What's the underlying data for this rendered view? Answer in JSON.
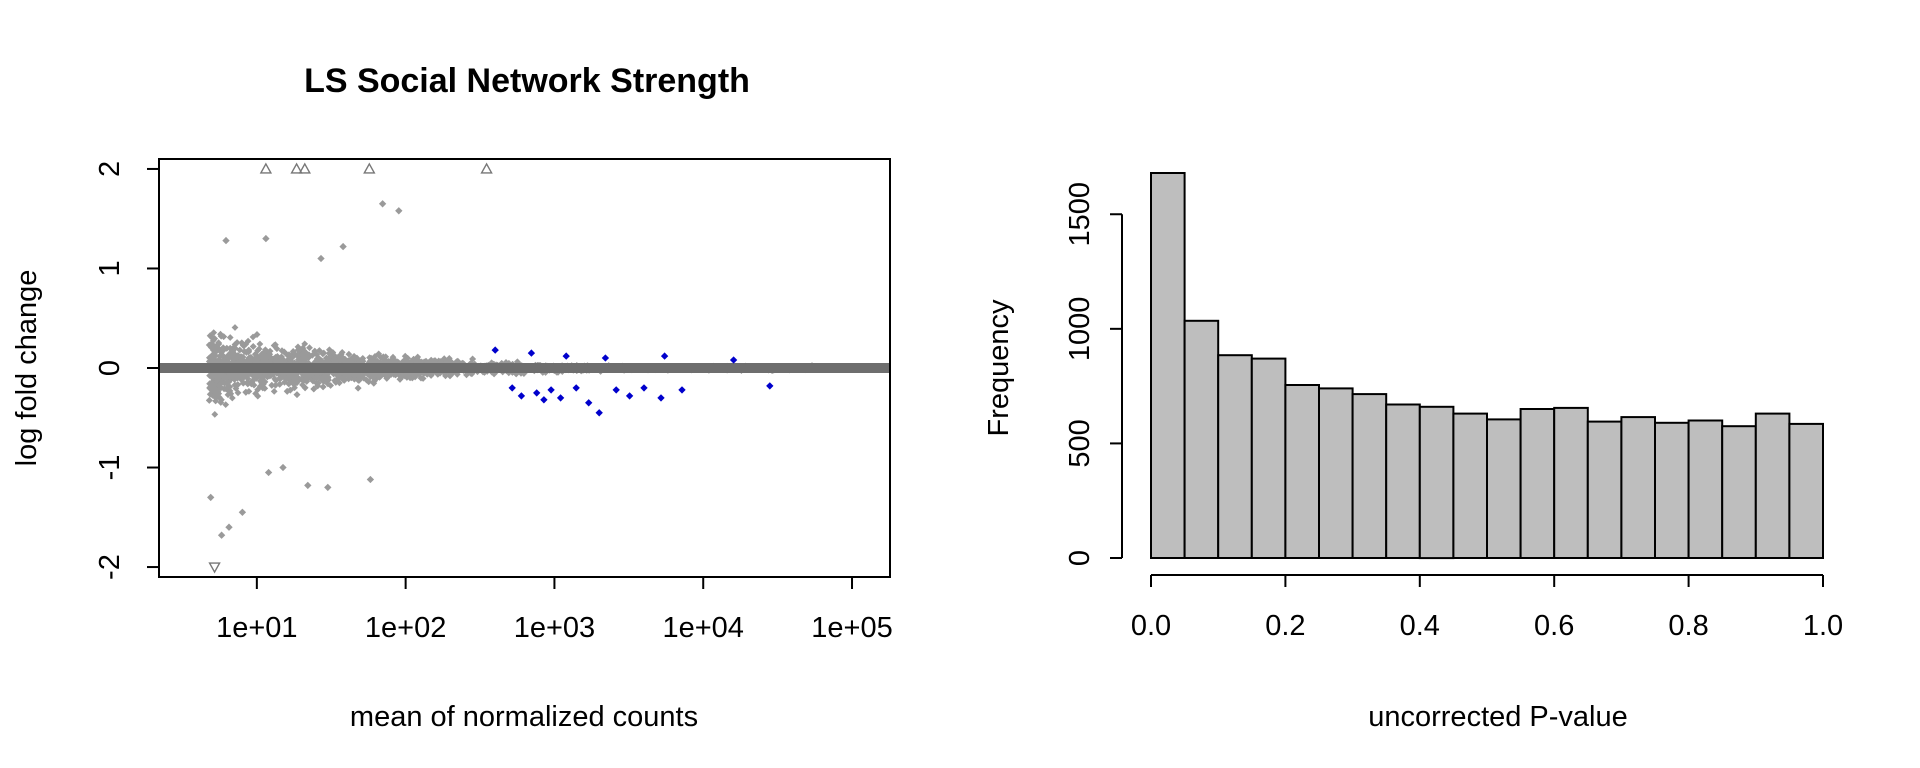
{
  "chart_data": [
    {
      "type": "scatter",
      "title": "LS Social Network Strength",
      "xlabel": "mean of normalized counts",
      "ylabel": "log fold change",
      "x_scale": "log10",
      "xlim": [
        2.2,
        180000
      ],
      "ylim": [
        -2.1,
        2.1
      ],
      "x_tick_values": [
        10,
        100,
        1000,
        10000,
        100000
      ],
      "x_tick_labels": [
        "1e+01",
        "1e+02",
        "1e+03",
        "1e+04",
        "1e+05"
      ],
      "y_tick_values": [
        -2,
        -1,
        0,
        1,
        2
      ],
      "y_tick_labels": [
        "-2",
        "-1",
        "0",
        "1",
        "2"
      ],
      "colors": {
        "not_significant": "#9a9a9a",
        "significant": "#0000cc",
        "zero_line": "#6e6e6e"
      },
      "clipped_up_x": [
        11.5,
        18.5,
        21,
        57,
        350
      ],
      "clipped_down_x": [
        5.2
      ],
      "significant_points": [
        [
          400,
          0.18
        ],
        [
          520,
          -0.2
        ],
        [
          600,
          -0.28
        ],
        [
          700,
          0.15
        ],
        [
          760,
          -0.25
        ],
        [
          850,
          -0.32
        ],
        [
          950,
          -0.22
        ],
        [
          1100,
          -0.3
        ],
        [
          1200,
          0.12
        ],
        [
          1400,
          -0.2
        ],
        [
          1700,
          -0.35
        ],
        [
          2000,
          -0.45
        ],
        [
          2200,
          0.1
        ],
        [
          2600,
          -0.22
        ],
        [
          3200,
          -0.28
        ],
        [
          4000,
          -0.2
        ],
        [
          5200,
          -0.3
        ],
        [
          5500,
          0.12
        ],
        [
          7200,
          -0.22
        ],
        [
          16000,
          0.08
        ],
        [
          28000,
          -0.18
        ]
      ],
      "outlier_points": [
        [
          70,
          1.65
        ],
        [
          90,
          1.58
        ],
        [
          11.5,
          1.3
        ],
        [
          38,
          1.22
        ],
        [
          27,
          1.1
        ],
        [
          6.2,
          1.28
        ],
        [
          8,
          -1.45
        ],
        [
          6.5,
          -1.6
        ],
        [
          58,
          -1.12
        ],
        [
          22,
          -1.18
        ],
        [
          30,
          -1.2
        ],
        [
          5.8,
          -1.68
        ],
        [
          4.9,
          -1.3
        ],
        [
          15,
          -1.0
        ],
        [
          12,
          -1.05
        ]
      ]
    },
    {
      "type": "bar",
      "xlabel": "uncorrected P-value",
      "ylabel": "Frequency",
      "bin_edges": [
        0,
        0.05,
        0.1,
        0.15,
        0.2,
        0.25,
        0.3,
        0.35,
        0.4,
        0.45,
        0.5,
        0.55,
        0.6,
        0.65,
        0.7,
        0.75,
        0.8,
        0.85,
        0.9,
        0.95,
        1.0
      ],
      "values": [
        1680,
        1035,
        885,
        870,
        755,
        740,
        715,
        670,
        660,
        630,
        605,
        650,
        655,
        595,
        615,
        590,
        600,
        575,
        630,
        585
      ],
      "xlim": [
        0,
        1
      ],
      "ylim": [
        0,
        1680
      ],
      "x_tick_values": [
        0,
        0.2,
        0.4,
        0.6,
        0.8,
        1.0
      ],
      "x_tick_labels": [
        "0.0",
        "0.2",
        "0.4",
        "0.6",
        "0.8",
        "1.0"
      ],
      "y_tick_values": [
        0,
        500,
        1000,
        1500
      ],
      "y_tick_labels": [
        "0",
        "500",
        "1000",
        "1500"
      ],
      "colors": {
        "bar_fill": "#bebebe",
        "bar_stroke": "#000000"
      }
    }
  ]
}
